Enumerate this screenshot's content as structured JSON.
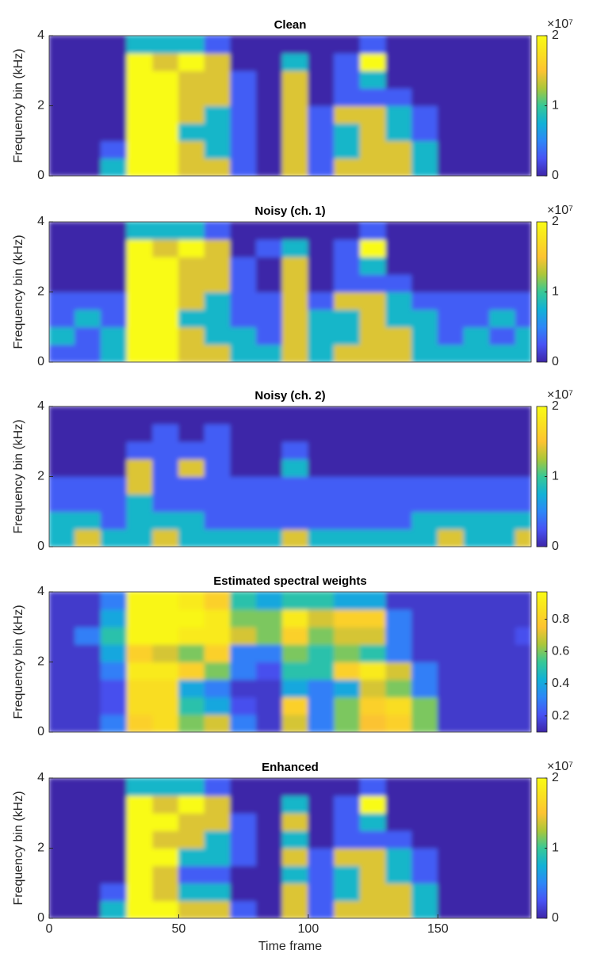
{
  "chart_data": [
    {
      "type": "heatmap",
      "title": "Clean",
      "ylabel": "Frequency bin (kHz)",
      "xlim": [
        0,
        186
      ],
      "ylim": [
        0,
        4
      ],
      "yticks": [
        0,
        2,
        4
      ],
      "xbins": [
        0,
        10,
        20,
        30,
        40,
        50,
        60,
        70,
        80,
        90,
        100,
        110,
        120,
        130,
        140,
        150,
        160,
        170,
        180,
        186
      ],
      "ybins": [
        0,
        0.5,
        1,
        1.5,
        2,
        2.5,
        3,
        3.5,
        4
      ],
      "clim": [
        0,
        20000000.0
      ],
      "cticks": [
        0,
        {
          "value": 10000000.0,
          "label": "1"
        },
        {
          "value": 20000000.0,
          "label": "2"
        }
      ],
      "colorbar_exponent": "×10⁷",
      "colormap": [
        "#3e26a8",
        "#4853f4",
        "#2d87f7",
        "#12b1d6",
        "#37c896",
        "#abc739",
        "#fdc332",
        "#f9e021",
        "#f9fb15"
      ],
      "z": [
        [
          0,
          0,
          8000000.0,
          20000000.0,
          20000000.0,
          14000000.0,
          14000000.0,
          3000000.0,
          0,
          14000000.0,
          3000000.0,
          14000000.0,
          14000000.0,
          14000000.0,
          8000000.0,
          0,
          0,
          0,
          0
        ],
        [
          0,
          0,
          3000000.0,
          20000000.0,
          20000000.0,
          14000000.0,
          8000000.0,
          3000000.0,
          0,
          14000000.0,
          3000000.0,
          8000000.0,
          14000000.0,
          14000000.0,
          8000000.0,
          0,
          0,
          0,
          0
        ],
        [
          0,
          0,
          0,
          20000000.0,
          20000000.0,
          8000000.0,
          8000000.0,
          3000000.0,
          0,
          14000000.0,
          3000000.0,
          8000000.0,
          14000000.0,
          8000000.0,
          3000000.0,
          0,
          0,
          0,
          0
        ],
        [
          0,
          0,
          0,
          20000000.0,
          20000000.0,
          14000000.0,
          8000000.0,
          3000000.0,
          0,
          14000000.0,
          3000000.0,
          14000000.0,
          14000000.0,
          8000000.0,
          3000000.0,
          0,
          0,
          0,
          0
        ],
        [
          0,
          0,
          0,
          20000000.0,
          20000000.0,
          14000000.0,
          14000000.0,
          3000000.0,
          0,
          14000000.0,
          0,
          3000000.0,
          3000000.0,
          3000000.0,
          0,
          0,
          0,
          0,
          0
        ],
        [
          0,
          0,
          0,
          20000000.0,
          20000000.0,
          14000000.0,
          14000000.0,
          3000000.0,
          0,
          14000000.0,
          0,
          3000000.0,
          8000000.0,
          0,
          0,
          0,
          0,
          0,
          0
        ],
        [
          0,
          0,
          0,
          20000000.0,
          14000000.0,
          20000000.0,
          14000000.0,
          0,
          0,
          8000000.0,
          0,
          3000000.0,
          20000000.0,
          0,
          0,
          0,
          0,
          0,
          0
        ],
        [
          0,
          0,
          0,
          8000000.0,
          8000000.0,
          8000000.0,
          3000000.0,
          0,
          0,
          0,
          0,
          0,
          3000000.0,
          0,
          0,
          0,
          0,
          0,
          0
        ]
      ]
    },
    {
      "type": "heatmap",
      "title": "Noisy (ch. 1)",
      "ylabel": "Frequency bin (kHz)",
      "xlim": [
        0,
        186
      ],
      "ylim": [
        0,
        4
      ],
      "yticks": [
        0,
        2,
        4
      ],
      "xbins": [
        0,
        10,
        20,
        30,
        40,
        50,
        60,
        70,
        80,
        90,
        100,
        110,
        120,
        130,
        140,
        150,
        160,
        170,
        180,
        186
      ],
      "ybins": [
        0,
        0.5,
        1,
        1.5,
        2,
        2.5,
        3,
        3.5,
        4
      ],
      "clim": [
        0,
        20000000.0
      ],
      "cticks": [
        0,
        {
          "value": 10000000.0,
          "label": "1"
        },
        {
          "value": 20000000.0,
          "label": "2"
        }
      ],
      "colorbar_exponent": "×10⁷",
      "colormap": [
        "#3e26a8",
        "#4853f4",
        "#2d87f7",
        "#12b1d6",
        "#37c896",
        "#abc739",
        "#fdc332",
        "#f9e021",
        "#f9fb15"
      ],
      "z": [
        [
          3000000.0,
          3000000.0,
          8000000.0,
          20000000.0,
          20000000.0,
          14000000.0,
          14000000.0,
          8000000.0,
          8000000.0,
          14000000.0,
          8000000.0,
          14000000.0,
          14000000.0,
          14000000.0,
          8000000.0,
          8000000.0,
          8000000.0,
          8000000.0,
          8000000.0
        ],
        [
          8000000.0,
          3000000.0,
          8000000.0,
          20000000.0,
          20000000.0,
          14000000.0,
          8000000.0,
          8000000.0,
          3000000.0,
          14000000.0,
          8000000.0,
          8000000.0,
          14000000.0,
          14000000.0,
          8000000.0,
          3000000.0,
          8000000.0,
          3000000.0,
          8000000.0
        ],
        [
          3000000.0,
          8000000.0,
          3000000.0,
          20000000.0,
          20000000.0,
          8000000.0,
          8000000.0,
          3000000.0,
          3000000.0,
          14000000.0,
          8000000.0,
          8000000.0,
          14000000.0,
          8000000.0,
          8000000.0,
          3000000.0,
          3000000.0,
          8000000.0,
          3000000.0
        ],
        [
          3000000.0,
          3000000.0,
          3000000.0,
          20000000.0,
          20000000.0,
          14000000.0,
          8000000.0,
          3000000.0,
          3000000.0,
          14000000.0,
          3000000.0,
          14000000.0,
          14000000.0,
          8000000.0,
          3000000.0,
          3000000.0,
          3000000.0,
          3000000.0,
          3000000.0
        ],
        [
          0,
          0,
          0,
          20000000.0,
          20000000.0,
          14000000.0,
          14000000.0,
          3000000.0,
          0,
          14000000.0,
          0,
          3000000.0,
          3000000.0,
          3000000.0,
          0,
          0,
          0,
          0,
          0
        ],
        [
          0,
          0,
          0,
          20000000.0,
          20000000.0,
          14000000.0,
          14000000.0,
          3000000.0,
          0,
          14000000.0,
          0,
          3000000.0,
          8000000.0,
          0,
          0,
          0,
          0,
          0,
          0
        ],
        [
          0,
          0,
          0,
          20000000.0,
          14000000.0,
          20000000.0,
          14000000.0,
          0,
          3000000.0,
          8000000.0,
          0,
          3000000.0,
          20000000.0,
          0,
          0,
          0,
          0,
          0,
          0
        ],
        [
          0,
          0,
          0,
          8000000.0,
          8000000.0,
          8000000.0,
          3000000.0,
          0,
          0,
          0,
          0,
          0,
          3000000.0,
          0,
          0,
          0,
          0,
          0,
          0
        ]
      ]
    },
    {
      "type": "heatmap",
      "title": "Noisy (ch. 2)",
      "ylabel": "Frequency bin (kHz)",
      "xlim": [
        0,
        186
      ],
      "ylim": [
        0,
        4
      ],
      "yticks": [
        0,
        2,
        4
      ],
      "xbins": [
        0,
        10,
        20,
        30,
        40,
        50,
        60,
        70,
        80,
        90,
        100,
        110,
        120,
        130,
        140,
        150,
        160,
        170,
        180,
        186
      ],
      "ybins": [
        0,
        0.5,
        1,
        1.5,
        2,
        2.5,
        3,
        3.5,
        4
      ],
      "clim": [
        0,
        20000000.0
      ],
      "cticks": [
        0,
        {
          "value": 10000000.0,
          "label": "1"
        },
        {
          "value": 20000000.0,
          "label": "2"
        }
      ],
      "colorbar_exponent": "×10⁷",
      "colormap": [
        "#3e26a8",
        "#4853f4",
        "#2d87f7",
        "#12b1d6",
        "#37c896",
        "#abc739",
        "#fdc332",
        "#f9e021",
        "#f9fb15"
      ],
      "z": [
        [
          8000000.0,
          14000000.0,
          8000000.0,
          8000000.0,
          14000000.0,
          8000000.0,
          8000000.0,
          8000000.0,
          8000000.0,
          14000000.0,
          8000000.0,
          8000000.0,
          8000000.0,
          8000000.0,
          8000000.0,
          14000000.0,
          8000000.0,
          8000000.0,
          14000000.0
        ],
        [
          8000000.0,
          8000000.0,
          3000000.0,
          8000000.0,
          8000000.0,
          8000000.0,
          3000000.0,
          3000000.0,
          3000000.0,
          3000000.0,
          3000000.0,
          3000000.0,
          3000000.0,
          3000000.0,
          8000000.0,
          8000000.0,
          8000000.0,
          8000000.0,
          8000000.0
        ],
        [
          3000000.0,
          3000000.0,
          3000000.0,
          8000000.0,
          3000000.0,
          3000000.0,
          3000000.0,
          3000000.0,
          3000000.0,
          3000000.0,
          3000000.0,
          3000000.0,
          3000000.0,
          3000000.0,
          3000000.0,
          3000000.0,
          3000000.0,
          3000000.0,
          3000000.0
        ],
        [
          3000000.0,
          3000000.0,
          3000000.0,
          14000000.0,
          3000000.0,
          3000000.0,
          3000000.0,
          3000000.0,
          3000000.0,
          3000000.0,
          3000000.0,
          3000000.0,
          3000000.0,
          3000000.0,
          3000000.0,
          3000000.0,
          3000000.0,
          3000000.0,
          3000000.0
        ],
        [
          0,
          0,
          0,
          14000000.0,
          3000000.0,
          14000000.0,
          3000000.0,
          0,
          0,
          8000000.0,
          0,
          0,
          0,
          0,
          0,
          0,
          0,
          0,
          0
        ],
        [
          0,
          0,
          0,
          3000000.0,
          3000000.0,
          3000000.0,
          3000000.0,
          0,
          0,
          3000000.0,
          0,
          0,
          0,
          0,
          0,
          0,
          0,
          0,
          0
        ],
        [
          0,
          0,
          0,
          0,
          3000000.0,
          0,
          3000000.0,
          0,
          0,
          0,
          0,
          0,
          0,
          0,
          0,
          0,
          0,
          0,
          0
        ],
        [
          0,
          0,
          0,
          0,
          0,
          0,
          0,
          0,
          0,
          0,
          0,
          0,
          0,
          0,
          0,
          0,
          0,
          0,
          0
        ]
      ]
    },
    {
      "type": "heatmap",
      "title": "Estimated spectral weights",
      "ylabel": "Frequency bin (kHz)",
      "xlim": [
        0,
        186
      ],
      "ylim": [
        0,
        4
      ],
      "yticks": [
        0,
        2,
        4
      ],
      "xbins": [
        0,
        10,
        20,
        30,
        40,
        50,
        60,
        70,
        80,
        90,
        100,
        110,
        120,
        130,
        140,
        150,
        160,
        170,
        180,
        186
      ],
      "ybins": [
        0,
        0.5,
        1,
        1.5,
        2,
        2.5,
        3,
        3.5,
        4
      ],
      "clim": [
        0.1,
        0.97
      ],
      "cticks": [
        0.2,
        0.4,
        0.6,
        0.8
      ],
      "colormap": [
        "#3e26a8",
        "#4853f4",
        "#2d87f7",
        "#12b1d6",
        "#37c896",
        "#abc739",
        "#fdc332",
        "#f9e021",
        "#f9fb15"
      ],
      "z": [
        [
          0.15,
          0.15,
          0.3,
          0.8,
          0.85,
          0.6,
          0.7,
          0.3,
          0.15,
          0.7,
          0.3,
          0.6,
          0.75,
          0.8,
          0.6,
          0.15,
          0.15,
          0.15,
          0.15
        ],
        [
          0.15,
          0.15,
          0.2,
          0.85,
          0.85,
          0.5,
          0.4,
          0.2,
          0.15,
          0.8,
          0.3,
          0.6,
          0.8,
          0.85,
          0.6,
          0.15,
          0.15,
          0.15,
          0.15
        ],
        [
          0.15,
          0.15,
          0.2,
          0.85,
          0.85,
          0.4,
          0.3,
          0.15,
          0.15,
          0.4,
          0.3,
          0.4,
          0.7,
          0.6,
          0.3,
          0.15,
          0.15,
          0.15,
          0.15
        ],
        [
          0.15,
          0.15,
          0.3,
          0.9,
          0.9,
          0.8,
          0.6,
          0.3,
          0.2,
          0.5,
          0.5,
          0.8,
          0.9,
          0.7,
          0.3,
          0.15,
          0.15,
          0.15,
          0.15
        ],
        [
          0.15,
          0.15,
          0.4,
          0.8,
          0.7,
          0.6,
          0.8,
          0.3,
          0.3,
          0.6,
          0.5,
          0.6,
          0.5,
          0.3,
          0.15,
          0.15,
          0.15,
          0.15,
          0.15
        ],
        [
          0.15,
          0.3,
          0.5,
          0.95,
          0.95,
          0.9,
          0.9,
          0.7,
          0.6,
          0.8,
          0.6,
          0.7,
          0.7,
          0.3,
          0.15,
          0.15,
          0.15,
          0.15,
          0.2
        ],
        [
          0.15,
          0.15,
          0.4,
          0.95,
          0.95,
          0.95,
          0.9,
          0.6,
          0.6,
          0.9,
          0.7,
          0.8,
          0.8,
          0.3,
          0.15,
          0.15,
          0.15,
          0.15,
          0.15
        ],
        [
          0.15,
          0.15,
          0.3,
          0.95,
          0.95,
          0.9,
          0.8,
          0.5,
          0.4,
          0.5,
          0.5,
          0.4,
          0.4,
          0.15,
          0.15,
          0.15,
          0.15,
          0.15,
          0.15
        ]
      ]
    },
    {
      "type": "heatmap",
      "title": "Enhanced",
      "ylabel": "Frequency bin (kHz)",
      "xlabel": "Time frame",
      "xlim": [
        0,
        186
      ],
      "ylim": [
        0,
        4
      ],
      "yticks": [
        0,
        2,
        4
      ],
      "xticks": [
        0,
        50,
        100,
        150
      ],
      "xbins": [
        0,
        10,
        20,
        30,
        40,
        50,
        60,
        70,
        80,
        90,
        100,
        110,
        120,
        130,
        140,
        150,
        160,
        170,
        180,
        186
      ],
      "ybins": [
        0,
        0.5,
        1,
        1.5,
        2,
        2.5,
        3,
        3.5,
        4
      ],
      "clim": [
        0,
        20000000.0
      ],
      "cticks": [
        0,
        {
          "value": 10000000.0,
          "label": "1"
        },
        {
          "value": 20000000.0,
          "label": "2"
        }
      ],
      "colorbar_exponent": "×10⁷",
      "colormap": [
        "#3e26a8",
        "#4853f4",
        "#2d87f7",
        "#12b1d6",
        "#37c896",
        "#abc739",
        "#fdc332",
        "#f9e021",
        "#f9fb15"
      ],
      "z": [
        [
          0,
          0,
          8000000.0,
          20000000.0,
          20000000.0,
          14000000.0,
          14000000.0,
          3000000.0,
          0,
          14000000.0,
          3000000.0,
          14000000.0,
          14000000.0,
          14000000.0,
          8000000.0,
          0,
          0,
          0,
          0
        ],
        [
          0,
          0,
          3000000.0,
          20000000.0,
          14000000.0,
          8000000.0,
          8000000.0,
          0,
          0,
          14000000.0,
          3000000.0,
          8000000.0,
          14000000.0,
          14000000.0,
          8000000.0,
          0,
          0,
          0,
          0
        ],
        [
          0,
          0,
          0,
          20000000.0,
          14000000.0,
          3000000.0,
          3000000.0,
          0,
          0,
          8000000.0,
          3000000.0,
          8000000.0,
          14000000.0,
          8000000.0,
          3000000.0,
          0,
          0,
          0,
          0
        ],
        [
          0,
          0,
          0,
          20000000.0,
          20000000.0,
          8000000.0,
          8000000.0,
          3000000.0,
          0,
          14000000.0,
          3000000.0,
          14000000.0,
          14000000.0,
          8000000.0,
          3000000.0,
          0,
          0,
          0,
          0
        ],
        [
          0,
          0,
          0,
          20000000.0,
          14000000.0,
          14000000.0,
          8000000.0,
          3000000.0,
          0,
          8000000.0,
          0,
          3000000.0,
          3000000.0,
          3000000.0,
          0,
          0,
          0,
          0,
          0
        ],
        [
          0,
          0,
          0,
          20000000.0,
          20000000.0,
          14000000.0,
          14000000.0,
          3000000.0,
          0,
          14000000.0,
          0,
          3000000.0,
          8000000.0,
          0,
          0,
          0,
          0,
          0,
          0
        ],
        [
          0,
          0,
          0,
          20000000.0,
          14000000.0,
          20000000.0,
          14000000.0,
          0,
          0,
          8000000.0,
          0,
          3000000.0,
          20000000.0,
          0,
          0,
          0,
          0,
          0,
          0
        ],
        [
          0,
          0,
          0,
          8000000.0,
          8000000.0,
          8000000.0,
          3000000.0,
          0,
          0,
          0,
          0,
          0,
          3000000.0,
          0,
          0,
          0,
          0,
          0,
          0
        ]
      ]
    }
  ]
}
